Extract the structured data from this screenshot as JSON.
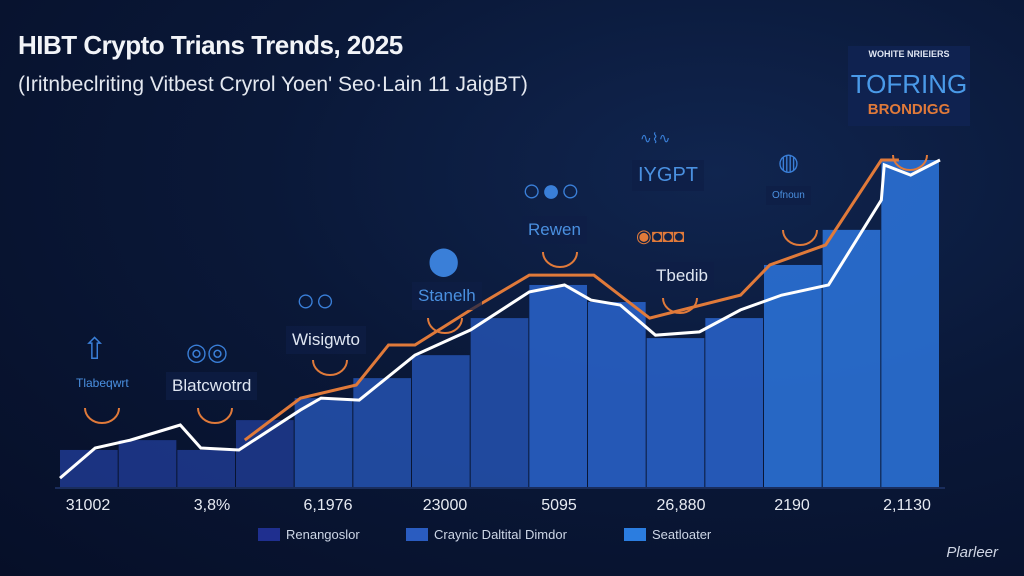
{
  "chart_data": {
    "type": "bar",
    "title": "HIBT Crypto Trians Trends, 2025",
    "subtitle": "(Iritnbeclriting Vitbest Cryrol Yoen' Seo·Lain 11 JaigBT)",
    "tick_labels": [
      "31002",
      "3,8%",
      "6,1976",
      "23000",
      "5095",
      "26,880",
      "2190",
      "2,1130"
    ],
    "bars": [
      11.6,
      14.6,
      11.6,
      20.7,
      27.4,
      33.5,
      40.5,
      51.8,
      61.9,
      56.7,
      45.7,
      51.8,
      68,
      78.7,
      100
    ],
    "bar_colors": [
      "#1f3a8f",
      "#2452b0",
      "#2a64cc",
      "#2d75dd"
    ],
    "white_line": [
      [
        0,
        3
      ],
      [
        0.6,
        12.2
      ],
      [
        1.2,
        14.6
      ],
      [
        2.05,
        19.2
      ],
      [
        2.4,
        12.2
      ],
      [
        3.05,
        11.6
      ],
      [
        4.1,
        23.8
      ],
      [
        4.45,
        27.4
      ],
      [
        5.1,
        26.8
      ],
      [
        6.05,
        40.5
      ],
      [
        7,
        48.2
      ],
      [
        8,
        59.8
      ],
      [
        8.6,
        61.9
      ],
      [
        9.05,
        57.3
      ],
      [
        9.55,
        55.8
      ],
      [
        10.15,
        46.6
      ],
      [
        10.9,
        47.6
      ],
      [
        11.6,
        54.3
      ],
      [
        12.3,
        58.8
      ],
      [
        13.1,
        61.9
      ],
      [
        14,
        87.8
      ],
      [
        14.05,
        98.5
      ],
      [
        14.5,
        95.4
      ],
      [
        15,
        100
      ]
    ],
    "orange_line": [
      [
        3.15,
        14.6
      ],
      [
        4.1,
        27.4
      ],
      [
        5.05,
        31.4
      ],
      [
        5.6,
        43.6
      ],
      [
        6.05,
        43.6
      ],
      [
        7,
        54.3
      ],
      [
        8,
        64.9
      ],
      [
        9.1,
        64.9
      ],
      [
        10.05,
        51.8
      ],
      [
        11.6,
        58.8
      ],
      [
        12.1,
        68
      ],
      [
        13.05,
        74.1
      ],
      [
        14,
        100
      ],
      [
        14.3,
        100
      ]
    ],
    "xlim": [
      0,
      15
    ],
    "ylim": [
      0,
      100
    ],
    "grid": false,
    "legend_position": "bottom",
    "legend": [
      {
        "label": "Renangoslor",
        "color": "#1f2f8f"
      },
      {
        "label": "Craynic Daltital Dimdor",
        "color": "#2a5cc0"
      },
      {
        "label": "Seatloater",
        "color": "#2b7de0"
      }
    ],
    "annotations": [
      {
        "label": "Tlabeqwrt",
        "icon": "arrow-up-icon"
      },
      {
        "label": "Blatcwotrd",
        "icon": "globe-icon"
      },
      {
        "label": "Wisigwto",
        "icon": "linked-circles-icon"
      },
      {
        "label": "Stanelh",
        "icon": "network-icon"
      },
      {
        "label": "Rewen",
        "icon": "linked-circles-icon"
      },
      {
        "label": "IYGPT",
        "icon": "chain-icon"
      },
      {
        "label": "Tbedib",
        "icon": "vehicles-icon"
      },
      {
        "label": "Ofnoun",
        "icon": "building-globe-icon"
      }
    ],
    "corner_box": {
      "small": "WOHITE NRIEIERS",
      "big": "TOFRING",
      "accent": "BRONDIGG"
    },
    "accent_color": "#e07a3a",
    "line_color": "#ffffff"
  },
  "brand": "Plarleer"
}
